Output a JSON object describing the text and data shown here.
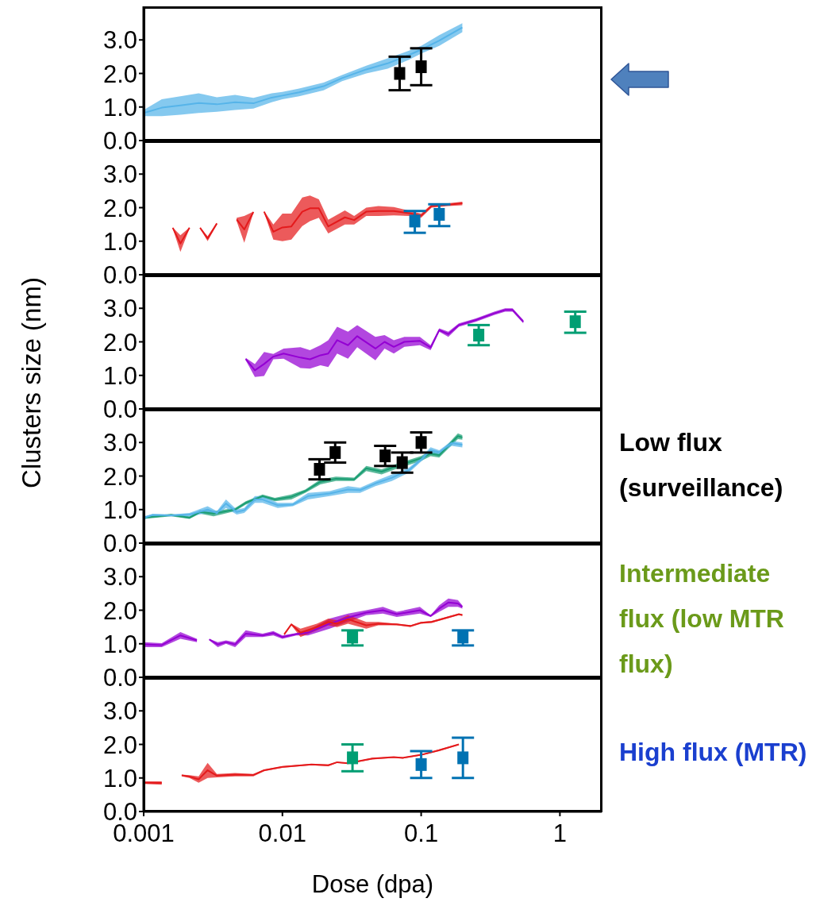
{
  "chart_data": [
    {
      "type": "line",
      "log": "x",
      "xlim": [
        0.001,
        2
      ],
      "xticks": [
        0.001,
        0.01,
        0.1,
        1
      ],
      "ylim": [
        0,
        4
      ],
      "yticks": [
        {
          "value": 0,
          "label": "0.0"
        },
        {
          "value": 1,
          "label": "1.0"
        },
        {
          "value": 2,
          "label": "2.0"
        },
        {
          "value": 3,
          "label": "3.0"
        }
      ],
      "tick_labels": "y",
      "series": [
        {
          "color": "#56b4e9",
          "marker": "none",
          "x": [
            0.001,
            0.00135,
            0.00184,
            0.00249,
            0.00337,
            0.00456,
            0.00618,
            0.00837,
            0.01,
            0.0132,
            0.0198,
            0.0269,
            0.0402,
            0.0573,
            0.0817,
            0.1,
            0.135,
            0.198
          ],
          "lower": [
            0.73,
            0.73,
            0.77,
            0.82,
            0.86,
            0.91,
            0.95,
            1.14,
            1.23,
            1.32,
            1.5,
            1.77,
            2.0,
            2.14,
            2.41,
            2.59,
            2.82,
            3.23
          ],
          "upper": [
            0.91,
            1.23,
            1.32,
            1.41,
            1.29,
            1.36,
            1.27,
            1.41,
            1.45,
            1.55,
            1.73,
            1.95,
            2.23,
            2.45,
            2.68,
            2.82,
            3.14,
            3.5
          ],
          "values": [
            0.82,
            0.98,
            1.05,
            1.12,
            1.08,
            1.14,
            1.11,
            1.28,
            1.34,
            1.44,
            1.62,
            1.86,
            2.12,
            2.3,
            2.55,
            2.71,
            2.98,
            3.37
          ]
        },
        {
          "type": "scatter",
          "color": "#000000",
          "marker": "square",
          "x": [
            0.07,
            0.1
          ],
          "values": [
            2.0,
            2.2
          ],
          "errors": [
            [
              1.5,
              2.5
            ],
            [
              1.65,
              2.75
            ]
          ]
        }
      ]
    },
    {
      "type": "line",
      "log": "x",
      "xlim": [
        0.001,
        2
      ],
      "xticks": [
        0.001,
        0.01,
        0.1,
        1
      ],
      "ylim": [
        0,
        4
      ],
      "yticks": [
        {
          "value": 0,
          "label": "0.0"
        },
        {
          "value": 1,
          "label": "1.0"
        },
        {
          "value": 2,
          "label": "2.0"
        },
        {
          "value": 3,
          "label": "3.0"
        }
      ],
      "tick_labels": "y",
      "series": [
        {
          "color": "#e41a1c",
          "marker": "none",
          "x": [
            0.00162,
            0.00184,
            0.00214,
            0.0023,
            0.00255,
            0.00289,
            0.00337,
            0.004,
            0.00468,
            0.00531,
            0.00618,
            0.0068,
            0.00738,
            0.0086,
            0.01,
            0.0116,
            0.0139,
            0.0158,
            0.0183,
            0.0214,
            0.0282,
            0.0329,
            0.0402,
            0.0492,
            0.0635,
            0.0836,
            0.1,
            0.119,
            0.157,
            0.198
          ],
          "lower": [
            1.38,
            0.68,
            1.38,
            null,
            1.38,
            1.0,
            1.5,
            null,
            1.6,
            0.95,
            1.85,
            null,
            1.85,
            1.05,
            1.0,
            1.05,
            1.45,
            1.6,
            1.7,
            1.23,
            1.5,
            1.5,
            1.75,
            1.75,
            1.77,
            1.75,
            1.7,
            2.0,
            2.05,
            2.07
          ],
          "upper": [
            1.41,
            1.18,
            1.41,
            null,
            1.41,
            1.15,
            1.55,
            null,
            1.7,
            1.75,
            1.88,
            null,
            1.9,
            1.5,
            1.82,
            1.82,
            2.3,
            2.36,
            2.25,
            1.64,
            1.92,
            1.75,
            2.0,
            2.05,
            2.02,
            1.9,
            1.82,
            2.1,
            2.13,
            2.18
          ],
          "values": [
            1.4,
            0.93,
            1.4,
            null,
            1.4,
            1.08,
            1.53,
            null,
            1.65,
            1.35,
            1.87,
            null,
            1.88,
            1.28,
            1.41,
            1.44,
            1.88,
            1.98,
            1.98,
            1.44,
            1.71,
            1.63,
            1.88,
            1.9,
            1.9,
            1.83,
            1.76,
            2.05,
            2.09,
            2.13
          ]
        },
        {
          "type": "scatter",
          "color": "#0072b2",
          "marker": "square",
          "x": [
            0.09,
            0.135
          ],
          "values": [
            1.6,
            1.8
          ],
          "errors": [
            [
              1.25,
              1.9
            ],
            [
              1.45,
              2.1
            ]
          ]
        }
      ]
    },
    {
      "type": "line",
      "log": "x",
      "xlim": [
        0.001,
        2
      ],
      "xticks": [
        0.001,
        0.01,
        0.1,
        1
      ],
      "ylim": [
        0,
        4
      ],
      "yticks": [
        {
          "value": 0,
          "label": "0.0"
        },
        {
          "value": 1,
          "label": "1.0"
        },
        {
          "value": 2,
          "label": "2.0"
        },
        {
          "value": 3,
          "label": "3.0"
        }
      ],
      "tick_labels": "y",
      "series": [
        {
          "color": "#9400d3",
          "marker": "none",
          "x": [
            0.00544,
            0.00633,
            0.00738,
            0.0086,
            0.0102,
            0.0135,
            0.0158,
            0.0188,
            0.0214,
            0.0248,
            0.0297,
            0.0346,
            0.0468,
            0.0545,
            0.0635,
            0.0757,
            0.0979,
            0.117,
            0.135,
            0.157,
            0.187,
            0.248,
            0.336,
            0.403,
            0.456,
            0.545
          ],
          "lower": [
            1.45,
            0.95,
            0.98,
            1.48,
            1.5,
            1.22,
            1.2,
            1.3,
            1.25,
            1.65,
            1.5,
            1.84,
            1.45,
            1.8,
            1.65,
            1.85,
            1.9,
            1.75,
            2.3,
            2.15,
            2.45,
            2.6,
            2.8,
            2.9,
            2.9,
            2.55
          ],
          "upper": [
            1.52,
            1.34,
            1.7,
            1.64,
            1.8,
            1.84,
            1.75,
            1.9,
            2.05,
            2.45,
            2.3,
            2.5,
            2.15,
            2.2,
            2.05,
            2.15,
            2.15,
            1.9,
            2.4,
            2.3,
            2.55,
            2.7,
            2.9,
            3.0,
            3.0,
            2.65
          ],
          "values": [
            1.49,
            1.15,
            1.34,
            1.56,
            1.65,
            1.53,
            1.48,
            1.6,
            1.65,
            2.05,
            1.9,
            2.17,
            1.8,
            2.0,
            1.85,
            2.0,
            2.03,
            1.83,
            2.35,
            2.23,
            2.5,
            2.65,
            2.85,
            2.95,
            2.95,
            2.6
          ]
        },
        {
          "type": "scatter",
          "color": "#009e73",
          "marker": "square",
          "x": [
            0.26,
            1.29
          ],
          "values": [
            2.2,
            2.6
          ],
          "errors": [
            [
              1.9,
              2.5
            ],
            [
              2.27,
              2.9
            ]
          ]
        }
      ]
    },
    {
      "type": "line",
      "log": "x",
      "xlim": [
        0.001,
        2
      ],
      "xticks": [
        0.001,
        0.01,
        0.1,
        1
      ],
      "ylim": [
        0,
        4
      ],
      "yticks": [
        {
          "value": 0,
          "label": "0.0"
        },
        {
          "value": 1,
          "label": "1.0"
        },
        {
          "value": 2,
          "label": "2.0"
        },
        {
          "value": 3,
          "label": "3.0"
        }
      ],
      "tick_labels": "y",
      "ylabel": "Clusters size (nm)",
      "annotations": [
        "Low flux (surveillance)"
      ],
      "series": [
        {
          "color": "#1b9e73",
          "marker": "none",
          "x": [
            0.001,
            0.00158,
            0.00214,
            0.00255,
            0.00319,
            0.00456,
            0.00544,
            0.0072,
            0.00882,
            0.0116,
            0.0146,
            0.0188,
            0.0243,
            0.0329,
            0.0402,
            0.0519,
            0.065,
            0.1,
            0.117,
            0.135,
            0.184,
            0.198
          ],
          "lower": [
            0.72,
            0.8,
            0.72,
            0.88,
            0.8,
            0.95,
            1.15,
            1.35,
            1.25,
            1.3,
            1.5,
            1.75,
            1.85,
            1.85,
            2.15,
            2.05,
            2.2,
            2.45,
            2.59,
            2.55,
            3.1,
            3.08
          ],
          "upper": [
            0.8,
            0.87,
            0.8,
            0.98,
            0.95,
            1.05,
            1.25,
            1.45,
            1.35,
            1.45,
            1.6,
            1.9,
            1.98,
            1.95,
            2.3,
            2.2,
            2.35,
            2.6,
            2.75,
            2.68,
            3.27,
            3.22
          ],
          "values": [
            0.76,
            0.84,
            0.76,
            0.93,
            0.88,
            1.0,
            1.2,
            1.4,
            1.3,
            1.38,
            1.55,
            1.83,
            1.92,
            1.9,
            2.23,
            2.13,
            2.28,
            2.53,
            2.67,
            2.62,
            3.19,
            3.15
          ]
        },
        {
          "color": "#56b4e9",
          "marker": "none",
          "x": [
            0.001,
            0.00116,
            0.00158,
            0.00214,
            0.00289,
            0.00337,
            0.00392,
            0.00468,
            0.00531,
            0.00633,
            0.0072,
            0.00925,
            0.0119,
            0.0153,
            0.0219,
            0.0297,
            0.0363,
            0.0468,
            0.0616,
            0.0817,
            0.1,
            0.117,
            0.135,
            0.166,
            0.198
          ],
          "lower": [
            0.7,
            0.8,
            0.8,
            0.8,
            0.9,
            0.85,
            1.05,
            0.85,
            0.9,
            1.2,
            1.2,
            1.05,
            1.1,
            1.3,
            1.4,
            1.5,
            1.5,
            1.7,
            1.85,
            2.1,
            2.43,
            2.68,
            2.64,
            2.9,
            2.85
          ],
          "upper": [
            0.8,
            0.87,
            0.85,
            0.9,
            1.1,
            0.95,
            1.3,
            1.0,
            1.05,
            1.4,
            1.4,
            1.2,
            1.2,
            1.5,
            1.55,
            1.7,
            1.65,
            1.85,
            2.05,
            2.25,
            2.55,
            2.86,
            2.77,
            3.05,
            3.0
          ],
          "values": [
            0.75,
            0.84,
            0.83,
            0.85,
            1.0,
            0.9,
            1.18,
            0.93,
            0.98,
            1.3,
            1.3,
            1.13,
            1.15,
            1.4,
            1.48,
            1.6,
            1.58,
            1.78,
            1.95,
            2.18,
            2.49,
            2.77,
            2.71,
            2.98,
            2.93
          ]
        },
        {
          "type": "scatter",
          "color": "#000000",
          "marker": "square",
          "x": [
            0.0185,
            0.024,
            0.055,
            0.073,
            0.1
          ],
          "values": [
            2.2,
            2.7,
            2.6,
            2.4,
            3.0
          ],
          "errors": [
            [
              1.9,
              2.5
            ],
            [
              2.4,
              3.0
            ],
            [
              2.3,
              2.9
            ],
            [
              2.1,
              2.7
            ],
            [
              2.7,
              3.3
            ]
          ]
        }
      ]
    },
    {
      "type": "line",
      "log": "x",
      "xlim": [
        0.001,
        2
      ],
      "xticks": [
        0.001,
        0.01,
        0.1,
        1
      ],
      "ylim": [
        0,
        4
      ],
      "yticks": [
        {
          "value": 0,
          "label": "0.0"
        },
        {
          "value": 1,
          "label": "1.0"
        },
        {
          "value": 2,
          "label": "2.0"
        },
        {
          "value": 3,
          "label": "3.0"
        }
      ],
      "tick_labels": "y",
      "annotations": [
        "Intermediate flux (low MTR flux)"
      ],
      "series": [
        {
          "color": "#9400d3",
          "marker": "none",
          "x": [
            0.001,
            0.00135,
            0.00184,
            0.00242,
            0.0027,
            0.00297,
            0.00342,
            0.00392,
            0.00456,
            0.00544,
            0.0072,
            0.0086,
            0.01,
            0.0126,
            0.0153,
            0.0219,
            0.0297,
            0.0402,
            0.053,
            0.0667,
            0.0979,
            0.117,
            0.135,
            0.157,
            0.184,
            0.198
          ],
          "lower": [
            0.9,
            0.9,
            1.15,
            1.05,
            null,
            1.1,
            0.9,
            1.0,
            0.9,
            1.2,
            1.2,
            1.25,
            1.15,
            1.25,
            1.25,
            1.45,
            1.65,
            1.85,
            1.9,
            1.8,
            1.9,
            1.8,
            1.95,
            2.1,
            2.1,
            2.05
          ],
          "upper": [
            1.05,
            1.02,
            1.35,
            1.15,
            null,
            1.15,
            1.05,
            1.1,
            1.05,
            1.4,
            1.3,
            1.38,
            1.25,
            1.32,
            1.4,
            1.75,
            1.9,
            2.0,
            2.1,
            1.95,
            2.1,
            1.85,
            2.15,
            2.35,
            2.3,
            2.15
          ],
          "values": [
            0.98,
            0.96,
            1.25,
            1.1,
            null,
            1.13,
            0.98,
            1.05,
            0.98,
            1.3,
            1.25,
            1.32,
            1.2,
            1.29,
            1.33,
            1.6,
            1.78,
            1.93,
            2.0,
            1.88,
            2.0,
            1.83,
            2.05,
            2.23,
            2.2,
            2.1
          ]
        },
        {
          "color": "#e41a1c",
          "marker": "none",
          "x": [
            0.0103,
            0.0116,
            0.0135,
            0.0177,
            0.0214,
            0.0248,
            0.0297,
            0.0402,
            0.0492,
            0.0667,
            0.0836,
            0.1,
            0.119,
            0.187,
            0.198
          ],
          "lower": [
            1.25,
            1.55,
            1.2,
            1.4,
            1.55,
            1.5,
            1.6,
            1.45,
            1.55,
            1.55,
            1.5,
            1.6,
            1.62,
            1.85,
            1.83
          ],
          "upper": [
            1.3,
            1.6,
            1.45,
            1.6,
            1.75,
            1.7,
            1.85,
            1.65,
            1.65,
            1.6,
            1.55,
            1.65,
            1.68,
            1.9,
            1.88
          ],
          "values": [
            1.28,
            1.58,
            1.33,
            1.5,
            1.65,
            1.6,
            1.73,
            1.55,
            1.6,
            1.58,
            1.53,
            1.63,
            1.65,
            1.88,
            1.86
          ]
        },
        {
          "type": "scatter",
          "color": "#009e73",
          "marker": "square",
          "x": [
            0.032
          ],
          "values": [
            1.2
          ],
          "errors": [
            [
              0.95,
              1.4
            ]
          ]
        },
        {
          "type": "scatter",
          "color": "#0072b2",
          "marker": "square",
          "x": [
            0.2
          ],
          "values": [
            1.2
          ],
          "errors": [
            [
              0.95,
              1.4
            ]
          ]
        }
      ]
    },
    {
      "type": "line",
      "log": "x",
      "xlim": [
        0.001,
        2
      ],
      "xticks": [
        0.001,
        0.01,
        0.1,
        1
      ],
      "ylim": [
        0,
        4
      ],
      "yticks": [
        {
          "value": 0,
          "label": "0.0"
        },
        {
          "value": 1,
          "label": "1.0"
        },
        {
          "value": 2,
          "label": "2.0"
        },
        {
          "value": 3,
          "label": "3.0"
        }
      ],
      "xlabel": "Dose (dpa)",
      "annotations": [
        "High flux (MTR)"
      ],
      "series": [
        {
          "color": "#e41a1c",
          "marker": "none",
          "x": [
            0.001,
            0.00135,
            0.0016,
            0.00188,
            0.00214,
            0.00249,
            0.00289,
            0.00337,
            0.00456,
            0.00618,
            0.00738,
            0.01,
            0.0162,
            0.0214,
            0.0248,
            0.0297,
            0.0445,
            0.0635,
            0.0737,
            0.1,
            0.135,
            0.187
          ],
          "lower": [
            0.82,
            0.8,
            null,
            1.05,
            1.0,
            0.86,
            1.0,
            1.02,
            1.05,
            1.05,
            1.2,
            1.3,
            1.38,
            1.35,
            1.45,
            1.42,
            1.55,
            1.6,
            1.58,
            1.67,
            1.8,
            1.98
          ],
          "upper": [
            0.9,
            0.9,
            null,
            1.1,
            1.08,
            1.05,
            1.45,
            1.12,
            1.15,
            1.12,
            1.25,
            1.35,
            1.42,
            1.4,
            1.48,
            1.45,
            1.6,
            1.63,
            1.62,
            1.7,
            1.85,
            2.02
          ],
          "values": [
            0.86,
            0.85,
            null,
            1.08,
            1.04,
            0.96,
            1.23,
            1.07,
            1.1,
            1.09,
            1.23,
            1.33,
            1.4,
            1.38,
            1.47,
            1.44,
            1.58,
            1.62,
            1.6,
            1.69,
            1.83,
            2.0
          ]
        },
        {
          "type": "scatter",
          "color": "#009e73",
          "marker": "square",
          "x": [
            0.032
          ],
          "values": [
            1.6
          ],
          "errors": [
            [
              1.2,
              2.0
            ]
          ]
        },
        {
          "type": "scatter",
          "color": "#0072b2",
          "marker": "square",
          "x": [
            0.1,
            0.2
          ],
          "values": [
            1.4,
            1.6
          ],
          "errors": [
            [
              1.0,
              1.8
            ],
            [
              1.0,
              2.2
            ]
          ]
        }
      ]
    }
  ]
}
